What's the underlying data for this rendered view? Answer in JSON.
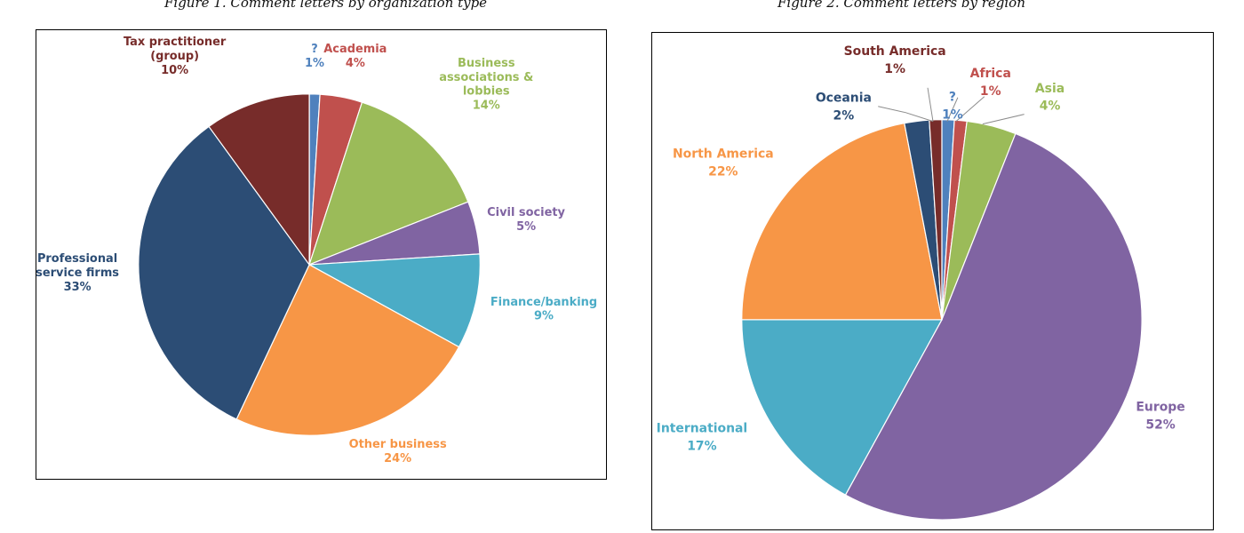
{
  "figures": {
    "fig1": {
      "caption": "Figure 1. Comment letters by organization type"
    },
    "fig2": {
      "caption": "Figure 2. Comment letters by region"
    }
  },
  "chart_data": [
    {
      "type": "pie",
      "title": "Figure 1. Comment letters by organization type",
      "slices": [
        {
          "label": "?",
          "value": 1,
          "value_label": "1%",
          "color": "#4f81bd"
        },
        {
          "label": "Academia",
          "value": 4,
          "value_label": "4%",
          "color": "#c0504d"
        },
        {
          "label": "Business associations & lobbies",
          "value": 14,
          "value_label": "14%",
          "color": "#9bbb59"
        },
        {
          "label": "Civil society",
          "value": 5,
          "value_label": "5%",
          "color": "#8064a2"
        },
        {
          "label": "Finance/banking",
          "value": 9,
          "value_label": "9%",
          "color": "#4bacc6"
        },
        {
          "label": "Other business",
          "value": 24,
          "value_label": "24%",
          "color": "#f79646"
        },
        {
          "label": "Professional service firms",
          "value": 33,
          "value_label": "33%",
          "color": "#2c4d75"
        },
        {
          "label": "Tax practitioner (group)",
          "value": 10,
          "value_label": "10%",
          "color": "#772c2a"
        }
      ]
    },
    {
      "type": "pie",
      "title": "Figure 2. Comment letters by region",
      "slices": [
        {
          "label": "?",
          "value": 1,
          "value_label": "1%",
          "color": "#4f81bd"
        },
        {
          "label": "Africa",
          "value": 1,
          "value_label": "1%",
          "color": "#c0504d"
        },
        {
          "label": "Asia",
          "value": 4,
          "value_label": "4%",
          "color": "#9bbb59"
        },
        {
          "label": "Europe",
          "value": 52,
          "value_label": "52%",
          "color": "#8064a2"
        },
        {
          "label": "International",
          "value": 17,
          "value_label": "17%",
          "color": "#4bacc6"
        },
        {
          "label": "North America",
          "value": 22,
          "value_label": "22%",
          "color": "#f79646"
        },
        {
          "label": "Oceania",
          "value": 2,
          "value_label": "2%",
          "color": "#2c4d75"
        },
        {
          "label": "South America",
          "value": 1,
          "value_label": "1%",
          "color": "#772c2a"
        }
      ]
    }
  ]
}
